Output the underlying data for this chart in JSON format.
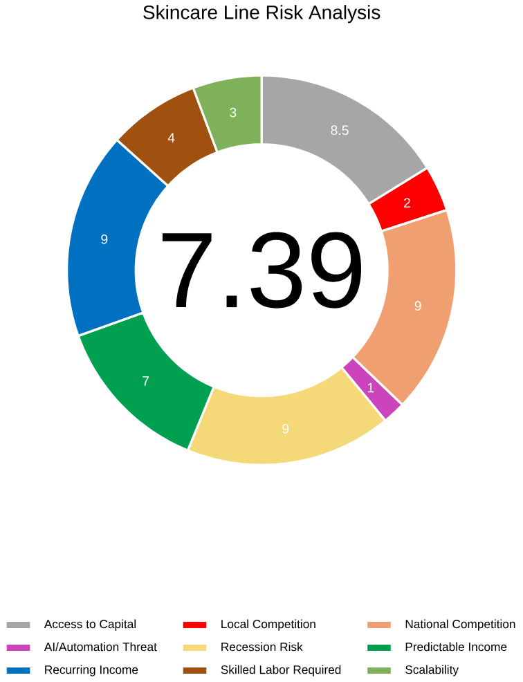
{
  "chart_data": {
    "type": "donut",
    "title": "Skincare Line Risk Analysis",
    "categories": [
      "Access to Capital",
      "Local Competition",
      "National Competition",
      "AI/Automation Threat",
      "Recession Risk",
      "Predictable Income",
      "Recurring Income",
      "Skilled Labor Required",
      "Scalability"
    ],
    "values": [
      8.5,
      2,
      9,
      1,
      9,
      7,
      9,
      4,
      3
    ],
    "colors": [
      "#a6a6a6",
      "#ff0000",
      "#f0a070",
      "#cc44bb",
      "#f5d878",
      "#00a050",
      "#0070c0",
      "#a0500f",
      "#7fb05a"
    ],
    "data_labels": true,
    "legend": "bottom",
    "annotations": [
      "7.39"
    ]
  }
}
